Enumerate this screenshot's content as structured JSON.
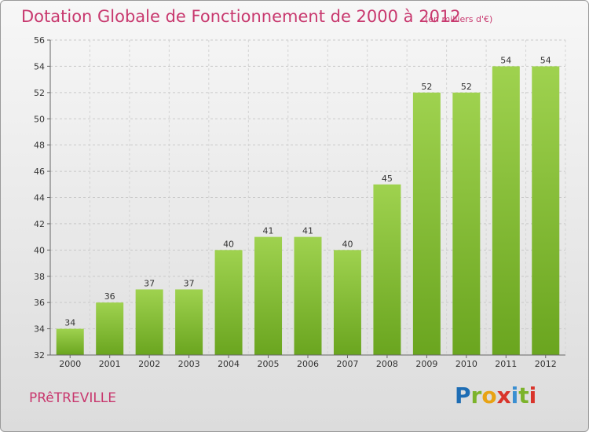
{
  "header": {
    "title": "Dotation Globale de Fonctionnement de 2000 à 2012",
    "subtitle": "(en milliers d'€)"
  },
  "footer": {
    "commune": "PRêTREVILLE",
    "logo_letters": [
      "P",
      "r",
      "o",
      "x",
      "i",
      "t",
      "i"
    ],
    "logo_colors": [
      "#1e6db4",
      "#7cb32b",
      "#e8a314",
      "#d9342b",
      "#3a8fd1",
      "#7cb32b",
      "#d9342b"
    ]
  },
  "chart_data": {
    "type": "bar",
    "title": "Dotation Globale de Fonctionnement de 2000 à 2012",
    "categories": [
      "2000",
      "2001",
      "2002",
      "2003",
      "2004",
      "2005",
      "2006",
      "2007",
      "2008",
      "2009",
      "2010",
      "2011",
      "2012"
    ],
    "values": [
      34,
      36,
      37,
      37,
      40,
      41,
      41,
      40,
      45,
      52,
      52,
      54,
      54
    ],
    "ylim": [
      32,
      56
    ],
    "yticks": [
      32,
      34,
      36,
      38,
      40,
      42,
      44,
      46,
      48,
      50,
      52,
      54,
      56
    ],
    "grid": true,
    "bar_color": "#7cb83a",
    "bar_color_light": "#9fd24f"
  }
}
